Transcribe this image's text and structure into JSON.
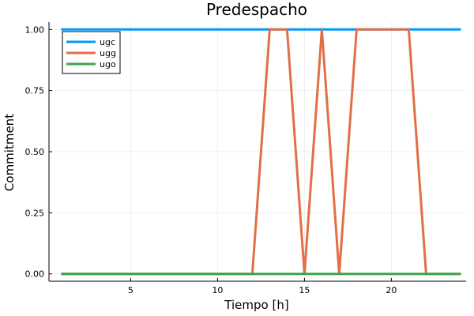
{
  "chart_data": {
    "type": "line",
    "title": "Predespacho",
    "xlabel": "Tiempo [h]",
    "ylabel": "Commitment",
    "xlim": [
      0.3,
      24.3
    ],
    "ylim": [
      -0.03,
      1.03
    ],
    "xticks": [
      5,
      10,
      15,
      20
    ],
    "xtick_labels": [
      "5",
      "10",
      "15",
      "20"
    ],
    "yticks": [
      0,
      0.25,
      0.5,
      0.75,
      1.0
    ],
    "ytick_labels": [
      "0.00",
      "0.25",
      "0.50",
      "0.75",
      "1.00"
    ],
    "grid": true,
    "legend_position": "top-left",
    "x": [
      1,
      2,
      3,
      4,
      5,
      6,
      7,
      8,
      9,
      10,
      11,
      12,
      13,
      14,
      15,
      16,
      17,
      18,
      19,
      20,
      21,
      22,
      23,
      24
    ],
    "series": [
      {
        "name": "ugc",
        "color": "#009af9",
        "values": [
          1,
          1,
          1,
          1,
          1,
          1,
          1,
          1,
          1,
          1,
          1,
          1,
          1,
          1,
          1,
          1,
          1,
          1,
          1,
          1,
          1,
          1,
          1,
          1
        ]
      },
      {
        "name": "ugg",
        "color": "#e26f46",
        "values": [
          0,
          0,
          0,
          0,
          0,
          0,
          0,
          0,
          0,
          0,
          0,
          0,
          1,
          1,
          0,
          1,
          0,
          1,
          1,
          1,
          1,
          0,
          0,
          0
        ]
      },
      {
        "name": "ugo",
        "color": "#3da44d",
        "values": [
          0,
          0,
          0,
          0,
          0,
          0,
          0,
          0,
          0,
          0,
          0,
          0,
          0,
          0,
          0,
          0,
          0,
          0,
          0,
          0,
          0,
          0,
          0,
          0
        ]
      }
    ]
  }
}
